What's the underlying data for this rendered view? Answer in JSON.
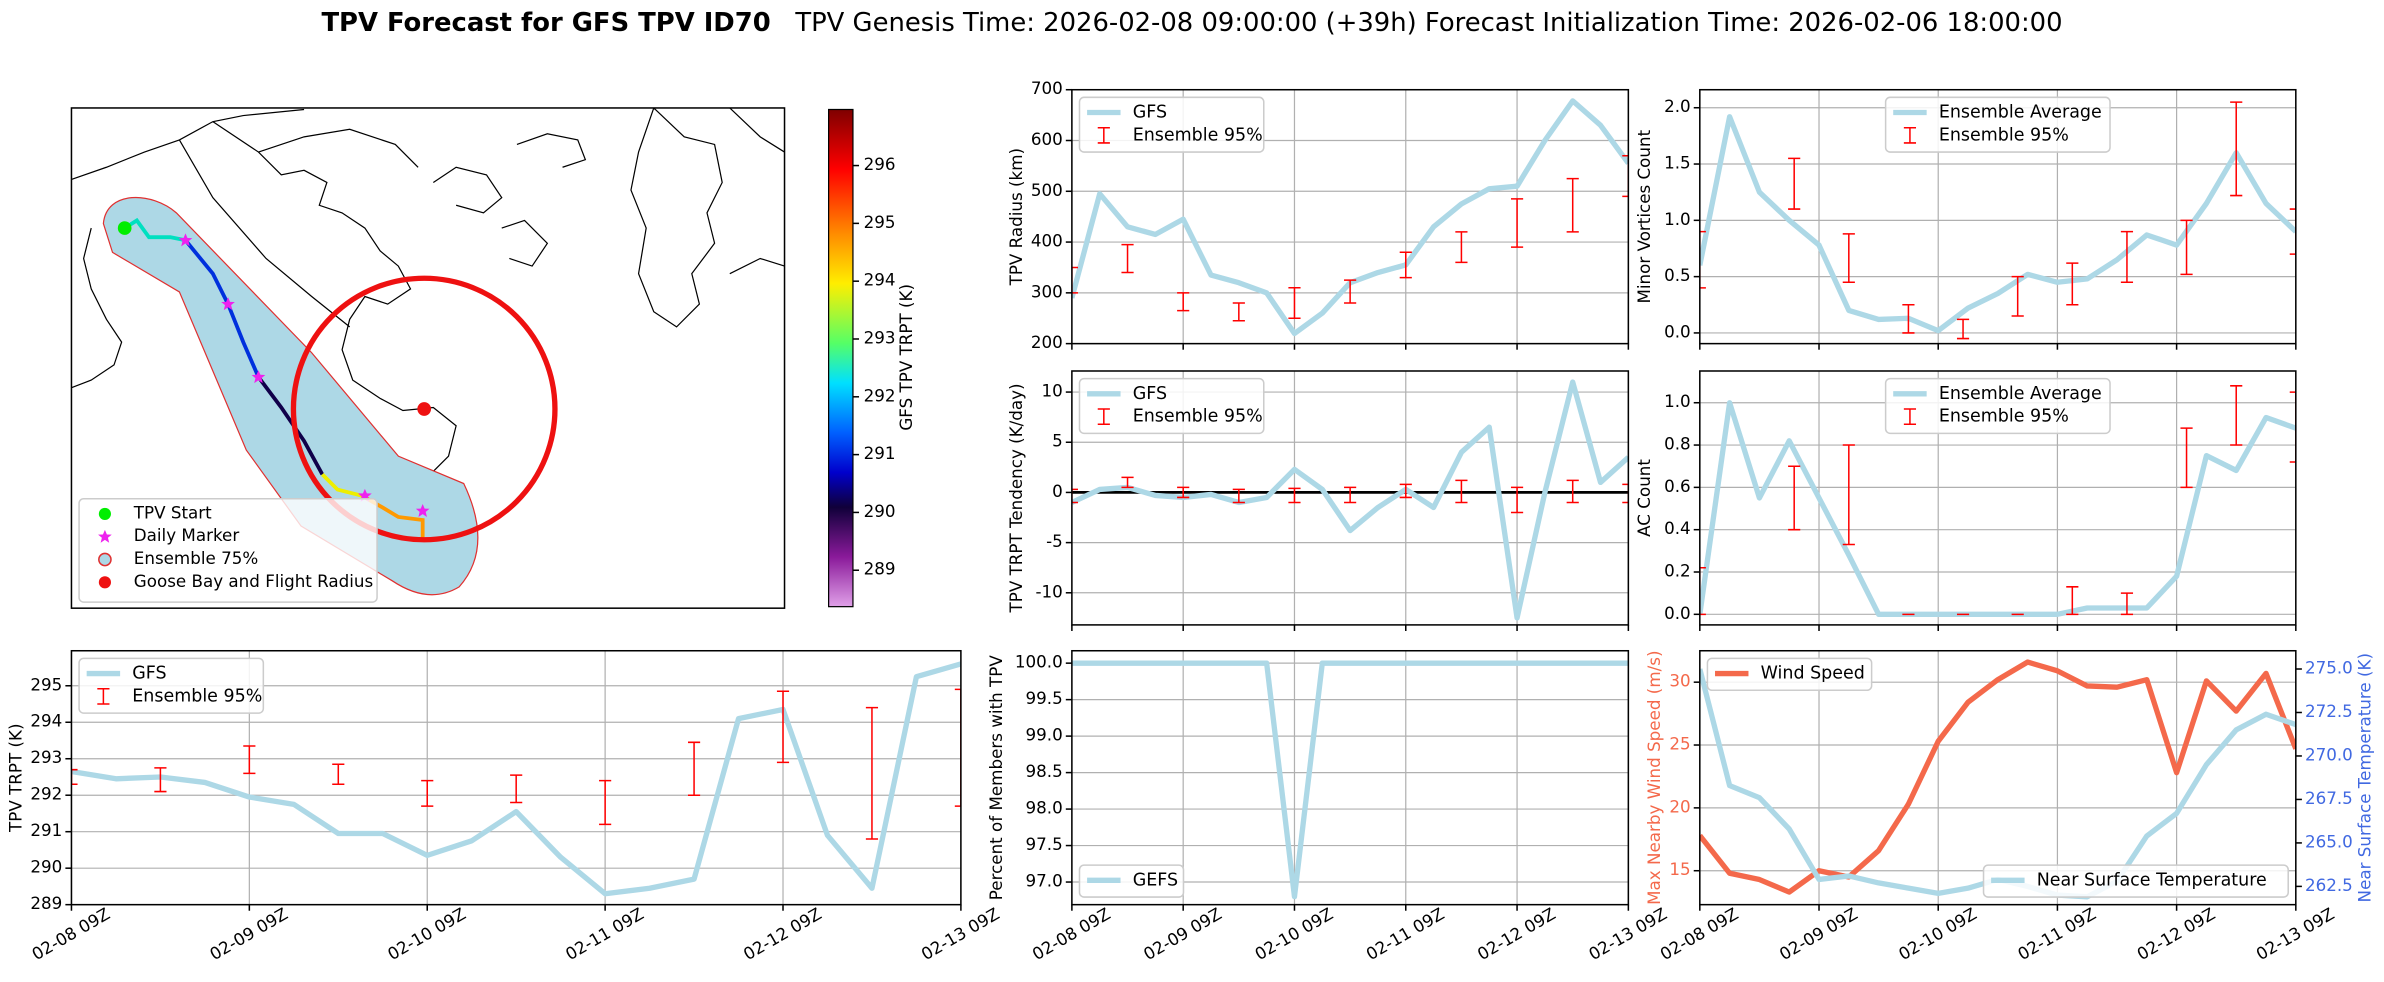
{
  "title": "TPV Forecast for GFS TPV ID70",
  "subtitle": "TPV Genesis Time: 2026-02-08 09:00:00 (+39h)   Forecast Initialization Time: 2026-02-06 18:00:00",
  "chart_data": [
    {
      "type": "map",
      "legend": [
        "TPV Start",
        "Daily Marker",
        "Ensemble 75%",
        "Goose Bay and Flight Radius"
      ],
      "colorbar": {
        "label": "GFS TPV TRPT (K)",
        "lim": [
          288.37,
          296.97
        ],
        "ticks": [
          289,
          290,
          291,
          292,
          293,
          294,
          295,
          296
        ]
      }
    },
    {
      "type": "line",
      "ylabel": "TPV Radius (km)",
      "x": [
        0,
        6,
        12,
        18,
        24,
        30,
        36,
        42,
        48,
        54,
        60,
        66,
        72,
        78,
        84,
        90,
        96,
        102,
        108,
        114,
        120
      ],
      "xlim": [
        0,
        120
      ],
      "xticks": [
        0,
        24,
        48,
        72,
        96,
        120
      ],
      "ylim": [
        200,
        700
      ],
      "yticks": [
        200,
        300,
        400,
        500,
        600,
        700
      ],
      "grid": true,
      "legend": "upper left",
      "series": [
        {
          "name": "GFS",
          "color": "#add8e6",
          "values": [
            290,
            495,
            430,
            415,
            445,
            335,
            320,
            300,
            220,
            260,
            320,
            340,
            355,
            430,
            475,
            505,
            510,
            600,
            678,
            630,
            555
          ]
        },
        {
          "name": "Ensemble 95%",
          "color": "#ff0000",
          "type": "errorbar",
          "x": [
            0,
            12,
            24,
            36,
            48,
            60,
            72,
            84,
            96,
            108,
            120
          ],
          "lower": [
            300,
            340,
            265,
            245,
            250,
            280,
            330,
            360,
            390,
            420,
            490
          ],
          "upper": [
            350,
            395,
            300,
            280,
            310,
            325,
            380,
            420,
            485,
            525,
            570
          ]
        }
      ]
    },
    {
      "type": "line",
      "ylabel": "Minor Vortices Count",
      "x": [
        0,
        6,
        12,
        18,
        24,
        30,
        36,
        42,
        48,
        54,
        60,
        66,
        72,
        78,
        84,
        90,
        96,
        102,
        108,
        114,
        120
      ],
      "xlim": [
        0,
        120
      ],
      "xticks": [
        0,
        24,
        48,
        72,
        96,
        120
      ],
      "ylim": [
        -0.095,
        2.16
      ],
      "yticks": [
        {
          "value": 0,
          "label": "0.0"
        },
        {
          "value": 0.5,
          "label": "0.5"
        },
        {
          "value": 1,
          "label": "1.0"
        },
        {
          "value": 1.5,
          "label": "1.5"
        },
        {
          "value": 2,
          "label": "2.0"
        }
      ],
      "grid": true,
      "legend": "upper center",
      "series": [
        {
          "name": "Ensemble Average",
          "color": "#add8e6",
          "values": [
            0.6,
            1.92,
            1.25,
            1.0,
            0.78,
            0.2,
            0.12,
            0.13,
            0.02,
            0.22,
            0.35,
            0.52,
            0.45,
            0.48,
            0.65,
            0.87,
            0.78,
            1.15,
            1.6,
            1.15,
            0.9
          ]
        },
        {
          "name": "Ensemble 95%",
          "color": "#ff0000",
          "type": "errorbar",
          "x": [
            0,
            19,
            30,
            42,
            53,
            64,
            75,
            86,
            98,
            108,
            120
          ],
          "lower": [
            0.4,
            1.1,
            0.45,
            0.0,
            -0.05,
            0.15,
            0.25,
            0.45,
            0.52,
            1.22,
            0.7
          ],
          "upper": [
            0.9,
            1.55,
            0.88,
            0.25,
            0.12,
            0.5,
            0.62,
            0.9,
            1.0,
            2.05,
            1.1
          ]
        }
      ]
    },
    {
      "type": "line",
      "ylabel": "TPV TRPT Tendency (K/day)",
      "x": [
        0,
        6,
        12,
        18,
        24,
        30,
        36,
        42,
        48,
        54,
        60,
        66,
        72,
        78,
        84,
        90,
        96,
        102,
        108,
        114,
        120
      ],
      "xlim": [
        0,
        120
      ],
      "xticks": [
        0,
        24,
        48,
        72,
        96,
        120
      ],
      "ylim": [
        -13.2,
        12.1
      ],
      "yticks": [
        -10,
        -5,
        0,
        5,
        10
      ],
      "grid": true,
      "legend": "upper left",
      "hline": 0,
      "series": [
        {
          "name": "GFS",
          "color": "#add8e6",
          "values": [
            -1,
            0.3,
            0.5,
            -0.3,
            -0.5,
            -0.2,
            -1,
            -0.5,
            2.3,
            0.3,
            -3.8,
            -1.5,
            0.3,
            -1.5,
            4,
            6.5,
            -12.5,
            0,
            11,
            1,
            3.5
          ]
        },
        {
          "name": "Ensemble 95%",
          "color": "#ff0000",
          "type": "errorbar",
          "x": [
            0,
            12,
            24,
            36,
            48,
            60,
            72,
            84,
            96,
            108,
            120
          ],
          "lower": [
            -1,
            0.5,
            -0.5,
            -1,
            -1,
            -1,
            -0.5,
            -1,
            -2,
            -1,
            -1
          ],
          "upper": [
            0.3,
            1.5,
            0.5,
            0.3,
            0.4,
            0.5,
            0.8,
            1.2,
            0.5,
            1.2,
            0.8
          ]
        }
      ]
    },
    {
      "type": "line",
      "ylabel": "AC Count",
      "x": [
        0,
        6,
        12,
        18,
        24,
        30,
        36,
        42,
        48,
        54,
        60,
        66,
        72,
        78,
        84,
        90,
        96,
        102,
        108,
        114,
        120
      ],
      "xlim": [
        0,
        120
      ],
      "xticks": [
        0,
        24,
        48,
        72,
        96,
        120
      ],
      "ylim": [
        -0.05,
        1.15
      ],
      "yticks": [
        {
          "value": 0,
          "label": "0.0"
        },
        {
          "value": 0.2,
          "label": "0.2"
        },
        {
          "value": 0.4,
          "label": "0.4"
        },
        {
          "value": 0.6,
          "label": "0.6"
        },
        {
          "value": 0.8,
          "label": "0.8"
        },
        {
          "value": 1,
          "label": "1.0"
        }
      ],
      "grid": true,
      "legend": "upper center",
      "series": [
        {
          "name": "Ensemble Average",
          "color": "#add8e6",
          "values": [
            0,
            1.0,
            0.55,
            0.82,
            0.55,
            0.28,
            0,
            0,
            0,
            0,
            0,
            0,
            0,
            0.03,
            0.03,
            0.03,
            0.18,
            0.75,
            0.68,
            0.93,
            0.88
          ]
        },
        {
          "name": "Ensemble 95%",
          "color": "#ff0000",
          "type": "errorbar",
          "x": [
            0,
            19,
            30,
            42,
            53,
            64,
            75,
            86,
            98,
            108,
            120
          ],
          "lower": [
            0,
            0.4,
            0.33,
            0,
            0,
            0,
            0,
            0,
            0.6,
            0.8,
            0.72
          ],
          "upper": [
            0.22,
            0.7,
            0.8,
            0,
            0,
            0,
            0.13,
            0.1,
            0.88,
            1.08,
            1.05
          ]
        }
      ]
    },
    {
      "type": "line",
      "ylabel": "TPV TRPT (K)",
      "x": [
        0,
        6,
        12,
        18,
        24,
        30,
        36,
        42,
        48,
        54,
        60,
        66,
        72,
        78,
        84,
        90,
        96,
        102,
        108,
        114,
        120
      ],
      "xlim": [
        0,
        120
      ],
      "xticks": [
        {
          "value": 0,
          "label": "02-08 09Z"
        },
        {
          "value": 24,
          "label": "02-09 09Z"
        },
        {
          "value": 48,
          "label": "02-10 09Z"
        },
        {
          "value": 72,
          "label": "02-11 09Z"
        },
        {
          "value": 96,
          "label": "02-12 09Z"
        },
        {
          "value": 120,
          "label": "02-13 09Z"
        }
      ],
      "ylim": [
        289,
        295.96
      ],
      "yticks": [
        289,
        290,
        291,
        292,
        293,
        294,
        295
      ],
      "grid": true,
      "legend": "upper left",
      "series": [
        {
          "name": "GFS",
          "color": "#add8e6",
          "values": [
            292.65,
            292.45,
            292.5,
            292.35,
            291.95,
            291.75,
            290.95,
            290.95,
            290.35,
            290.75,
            291.55,
            290.3,
            289.3,
            289.45,
            289.7,
            294.1,
            294.35,
            290.9,
            289.45,
            295.25,
            295.6
          ]
        },
        {
          "name": "Ensemble 95%",
          "color": "#ff0000",
          "type": "errorbar",
          "x": [
            0,
            12,
            24,
            36,
            48,
            60,
            72,
            84,
            96,
            108,
            120
          ],
          "lower": [
            292.3,
            292.1,
            292.6,
            292.3,
            291.7,
            291.8,
            291.2,
            292.0,
            292.9,
            290.8,
            291.7
          ],
          "upper": [
            292.7,
            292.75,
            293.35,
            292.85,
            292.4,
            292.55,
            292.4,
            293.45,
            294.85,
            294.4,
            294.9
          ]
        }
      ]
    },
    {
      "type": "line",
      "ylabel": "Percent of Members with TPV",
      "x": [
        0,
        6,
        12,
        18,
        24,
        30,
        36,
        42,
        48,
        54,
        60,
        66,
        72,
        78,
        84,
        90,
        96,
        102,
        108,
        114,
        120
      ],
      "xlim": [
        0,
        120
      ],
      "xticks": [
        {
          "value": 0,
          "label": "02-08 09Z"
        },
        {
          "value": 24,
          "label": "02-09 09Z"
        },
        {
          "value": 48,
          "label": "02-10 09Z"
        },
        {
          "value": 72,
          "label": "02-11 09Z"
        },
        {
          "value": 96,
          "label": "02-12 09Z"
        },
        {
          "value": 120,
          "label": "02-13 09Z"
        }
      ],
      "ylim": [
        96.69,
        100.17
      ],
      "yticks": [
        {
          "value": 97,
          "label": "97.0"
        },
        {
          "value": 97.5,
          "label": "97.5"
        },
        {
          "value": 98,
          "label": "98.0"
        },
        {
          "value": 98.5,
          "label": "98.5"
        },
        {
          "value": 99,
          "label": "99.0"
        },
        {
          "value": 99.5,
          "label": "99.5"
        },
        {
          "value": 100,
          "label": "100.0"
        }
      ],
      "grid": true,
      "legend": "lower left",
      "series": [
        {
          "name": "GEFS",
          "color": "#add8e6",
          "values": [
            100,
            100,
            100,
            100,
            100,
            100,
            100,
            100,
            96.8,
            100,
            100,
            100,
            100,
            100,
            100,
            100,
            100,
            100,
            100,
            100,
            100
          ]
        }
      ]
    },
    {
      "type": "line",
      "ylabel": "Max Nearby Wind Speed (m/s)",
      "y2label": "Near Surface Temperature (K)",
      "ylabel_color": "#f4694b",
      "y2label_color": "#4169e1",
      "x": [
        0,
        6,
        12,
        18,
        24,
        30,
        36,
        42,
        48,
        54,
        60,
        66,
        72,
        78,
        84,
        90,
        96,
        102,
        108,
        114,
        120
      ],
      "xlim": [
        0,
        120
      ],
      "xticks": [
        {
          "value": 0,
          "label": "02-08 09Z"
        },
        {
          "value": 24,
          "label": "02-09 09Z"
        },
        {
          "value": 48,
          "label": "02-10 09Z"
        },
        {
          "value": 72,
          "label": "02-11 09Z"
        },
        {
          "value": 96,
          "label": "02-12 09Z"
        },
        {
          "value": 120,
          "label": "02-13 09Z"
        }
      ],
      "ylim": [
        12.3,
        32.5
      ],
      "yticks": [
        15,
        20,
        25,
        30
      ],
      "y2lim": [
        261.45,
        276.05
      ],
      "y2ticks": [
        {
          "value": 262.5,
          "label": "262.5"
        },
        {
          "value": 265,
          "label": "265.0"
        },
        {
          "value": 267.5,
          "label": "267.5"
        },
        {
          "value": 270,
          "label": "270.0"
        },
        {
          "value": 272.5,
          "label": "272.5"
        },
        {
          "value": 275,
          "label": "275.0"
        }
      ],
      "grid": true,
      "legend": "upper left",
      "legend2": "lower right",
      "series": [
        {
          "name": "Wind Speed",
          "color": "#f4694b",
          "values": [
            17.8,
            14.8,
            14.3,
            13.3,
            15,
            14.5,
            16.6,
            20.3,
            25.3,
            28.4,
            30.2,
            31.6,
            30.9,
            29.7,
            29.6,
            30.2,
            22.8,
            30.1,
            27.7,
            30.7,
            24.7
          ]
        },
        {
          "name": "Near Surface Temperature",
          "color": "#add8e6",
          "axis": "y2",
          "values": [
            275,
            268.3,
            267.6,
            265.8,
            262.9,
            263.1,
            262.7,
            262.4,
            262.1,
            262.4,
            262.9,
            262.5,
            262,
            261.9,
            262.8,
            265.4,
            266.7,
            269.5,
            271.5,
            272.4,
            271.8
          ]
        }
      ]
    }
  ]
}
